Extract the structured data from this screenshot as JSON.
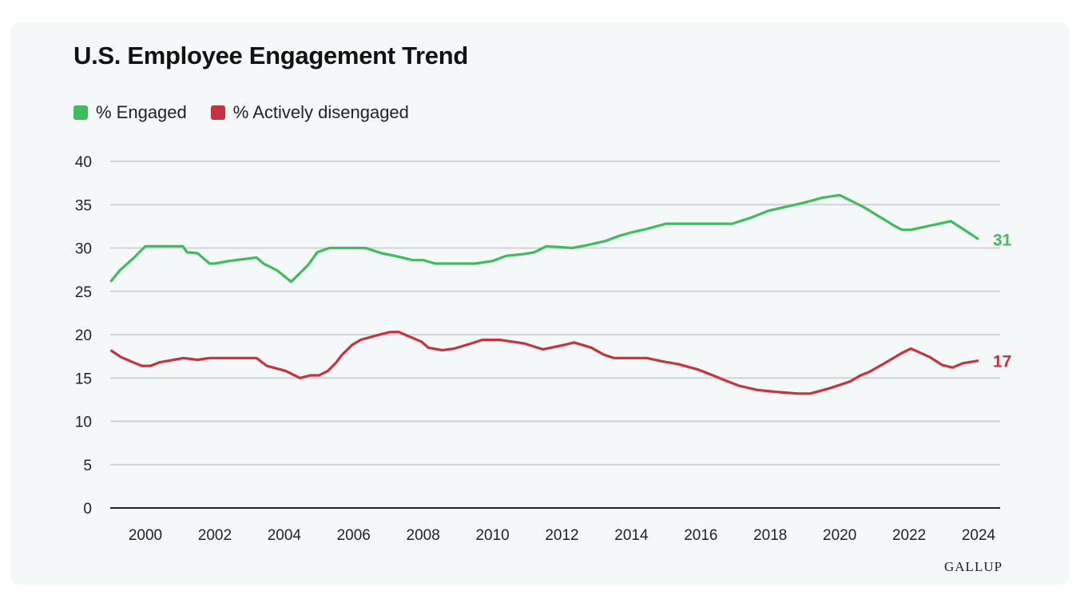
{
  "chart_data": {
    "type": "line",
    "title": "U.S. Employee Engagement Trend",
    "xlabel": "",
    "ylabel": "",
    "xlim": [
      1999,
      2024
    ],
    "ylim": [
      0,
      40
    ],
    "yticks": [
      0,
      5,
      10,
      15,
      20,
      25,
      30,
      35,
      40
    ],
    "xticks": [
      2000,
      2002,
      2004,
      2006,
      2008,
      2010,
      2012,
      2014,
      2016,
      2018,
      2020,
      2022,
      2024
    ],
    "grid": "horizontal",
    "legend": "top-left",
    "series": [
      {
        "name": "% Engaged",
        "color": "#3dbd5d",
        "end_label": "31",
        "x": [
          1999.0,
          1999.26,
          1999.65,
          2000.0,
          2001.08,
          2001.2,
          2001.5,
          2001.85,
          2002.0,
          2002.4,
          2003.2,
          2003.4,
          2003.8,
          2004.2,
          2004.7,
          2004.95,
          2005.3,
          2006.35,
          2006.8,
          2007.3,
          2007.7,
          2008.0,
          2008.35,
          2008.75,
          2009.5,
          2010.0,
          2010.4,
          2010.9,
          2011.2,
          2011.55,
          2012.3,
          2012.7,
          2013.25,
          2013.65,
          2014.0,
          2014.45,
          2015.0,
          2016.2,
          2016.9,
          2017.45,
          2017.95,
          2018.95,
          2019.5,
          2020.0,
          2020.7,
          2021.6,
          2021.8,
          2022.05,
          2023.2,
          2023.55,
          2024.0
        ],
        "y": [
          26.1,
          27.4,
          28.8,
          30.2,
          30.2,
          29.5,
          29.4,
          28.2,
          28.2,
          28.5,
          28.9,
          28.2,
          27.4,
          26.1,
          28.1,
          29.5,
          30,
          30,
          29.4,
          29,
          28.6,
          28.6,
          28.2,
          28.2,
          28.2,
          28.5,
          29.1,
          29.3,
          29.5,
          30.2,
          30.0,
          30.3,
          30.8,
          31.4,
          31.8,
          32.2,
          32.8,
          32.8,
          32.8,
          33.5,
          34.3,
          35.2,
          35.8,
          36.1,
          34.7,
          32.5,
          32.1,
          32.1,
          33.1,
          32.2,
          31
        ]
      },
      {
        "name": "% Actively disengaged",
        "color": "#c8323f",
        "end_label": "17",
        "x": [
          1999.0,
          1999.3,
          1999.65,
          1999.9,
          2000.15,
          2000.4,
          2001.1,
          2001.5,
          2001.85,
          2002.9,
          2003.2,
          2003.5,
          2004.05,
          2004.45,
          2004.75,
          2005.0,
          2005.25,
          2005.5,
          2005.65,
          2005.95,
          2006.2,
          2006.65,
          2007.05,
          2007.3,
          2007.65,
          2007.95,
          2008.15,
          2008.55,
          2008.9,
          2009.4,
          2009.7,
          2010.2,
          2010.9,
          2011.45,
          2012.05,
          2012.35,
          2012.85,
          2013.2,
          2013.5,
          2014.45,
          2014.9,
          2015.35,
          2015.9,
          2016.35,
          2016.65,
          2017.1,
          2017.65,
          2018.15,
          2018.8,
          2019.15,
          2019.7,
          2020.3,
          2020.6,
          2020.85,
          2021.25,
          2021.8,
          2022.05,
          2022.6,
          2022.95,
          2023.25,
          2023.55,
          2024.0
        ],
        "y": [
          18.2,
          17.4,
          16.8,
          16.4,
          16.4,
          16.8,
          17.3,
          17.1,
          17.3,
          17.3,
          17.3,
          16.4,
          15.8,
          15.0,
          15.3,
          15.3,
          15.8,
          16.8,
          17.6,
          18.8,
          19.4,
          19.9,
          20.3,
          20.3,
          19.7,
          19.2,
          18.5,
          18.2,
          18.4,
          19.0,
          19.4,
          19.4,
          19.0,
          18.3,
          18.8,
          19.1,
          18.5,
          17.7,
          17.3,
          17.3,
          16.9,
          16.6,
          16.0,
          15.3,
          14.8,
          14.1,
          13.6,
          13.4,
          13.2,
          13.2,
          13.8,
          14.6,
          15.3,
          15.7,
          16.6,
          17.9,
          18.4,
          17.4,
          16.5,
          16.2,
          16.7,
          17
        ]
      }
    ],
    "source": "GALLUP"
  }
}
